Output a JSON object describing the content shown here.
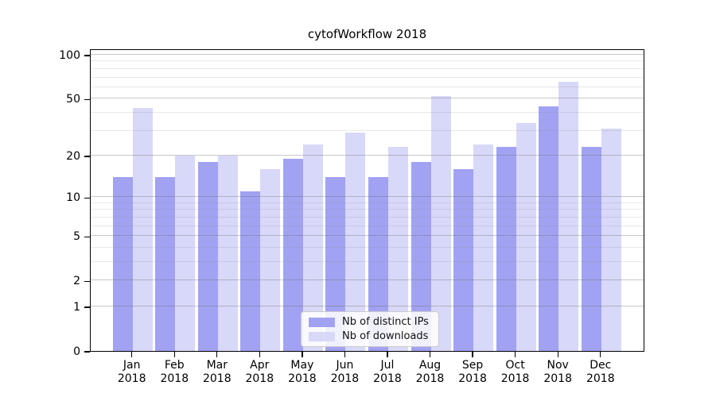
{
  "chart_data": {
    "type": "bar",
    "title": "cytofWorkflow 2018",
    "categories": [
      "Jan",
      "Feb",
      "Mar",
      "Apr",
      "May",
      "Jun",
      "Jul",
      "Aug",
      "Sep",
      "Oct",
      "Nov",
      "Dec"
    ],
    "x_year": "2018",
    "series": [
      {
        "name": "Nb of distinct IPs",
        "color": "#A2A2F2",
        "values": [
          14,
          14,
          18,
          11,
          19,
          14,
          14,
          18,
          16,
          23,
          44,
          23
        ]
      },
      {
        "name": "Nb of downloads",
        "color": "#D8D8F8",
        "values": [
          43,
          20,
          20,
          16,
          24,
          29,
          23,
          52,
          24,
          34,
          65,
          31
        ]
      }
    ],
    "yscale": "log1p",
    "ylim": [
      0,
      101
    ],
    "y_tick_values": [
      100,
      50,
      20,
      10,
      5,
      2,
      1,
      0
    ],
    "y_major_gridlines": [
      1,
      2,
      5,
      10,
      20,
      50,
      100
    ],
    "y_minor_gridlines": [
      3,
      4,
      6,
      7,
      8,
      9,
      30,
      40,
      60,
      70,
      80,
      90
    ],
    "grid": "horizontal",
    "legend": {
      "position": "lower-center",
      "items": [
        "Nb of distinct IPs",
        "Nb of downloads"
      ]
    }
  }
}
